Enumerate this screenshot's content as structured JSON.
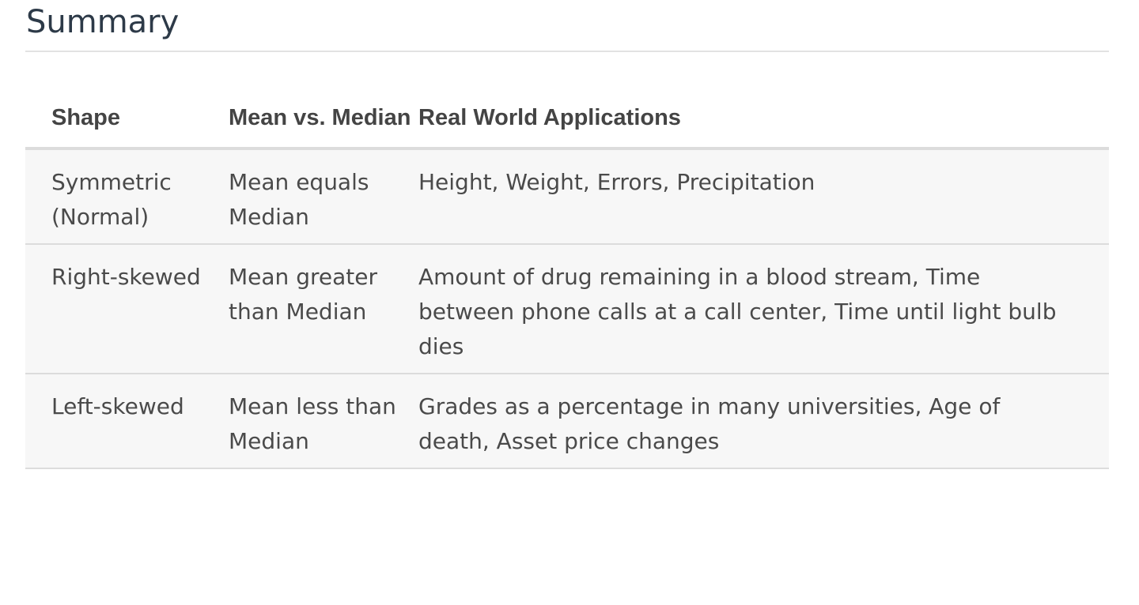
{
  "title": "Summary",
  "table": {
    "headers": [
      "Shape",
      "Mean vs. Median",
      "Real World Applications"
    ],
    "rows": [
      {
        "shape": "Symmetric (Normal)",
        "comparison": "Mean equals Median",
        "applications": "Height, Weight, Errors, Precipitation"
      },
      {
        "shape": "Right-skewed",
        "comparison": "Mean greater than Median",
        "applications": "Amount of drug remaining in a blood stream, Time between phone calls at a call center, Time until light bulb dies"
      },
      {
        "shape": "Left-skewed",
        "comparison": "Mean less than Median",
        "applications": "Grades as a percentage in many universities, Age of death, Asset price changes"
      }
    ]
  }
}
